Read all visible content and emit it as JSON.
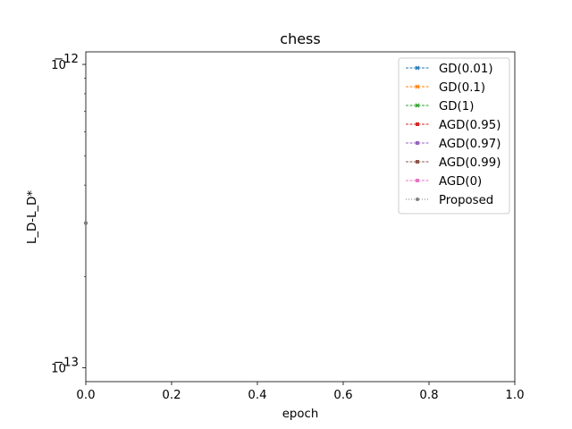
{
  "chart_data": {
    "type": "line",
    "title": "chess",
    "xlabel": "epoch",
    "ylabel": "L_D-L_D*",
    "xlim": [
      0.0,
      1.0
    ],
    "ylim": [
      9e-14,
      1.1e-12
    ],
    "yscale": "log",
    "grid": false,
    "legend_position": "top-right",
    "x_ticks": [
      {
        "value": 0.0,
        "label": "0.0"
      },
      {
        "value": 0.2,
        "label": "0.2"
      },
      {
        "value": 0.4,
        "label": "0.4"
      },
      {
        "value": 0.6,
        "label": "0.6"
      },
      {
        "value": 0.8,
        "label": "0.8"
      },
      {
        "value": 1.0,
        "label": "1.0"
      }
    ],
    "y_ticks": [
      {
        "value": 1e-13,
        "base": "10",
        "exp": "−13"
      },
      {
        "value": 1e-12,
        "base": "10",
        "exp": "−12"
      }
    ],
    "series": [
      {
        "name": "GD(0.01)",
        "color": "#1f77b4",
        "marker": "x",
        "linestyle": "dashed",
        "x": [],
        "y": []
      },
      {
        "name": "GD(0.1)",
        "color": "#ff7f0e",
        "marker": "x",
        "linestyle": "dashed",
        "x": [],
        "y": []
      },
      {
        "name": "GD(1)",
        "color": "#2ca02c",
        "marker": "x",
        "linestyle": "dashed",
        "x": [],
        "y": []
      },
      {
        "name": "AGD(0.95)",
        "color": "#d62728",
        "marker": "square",
        "linestyle": "dashed",
        "x": [],
        "y": []
      },
      {
        "name": "AGD(0.97)",
        "color": "#9467bd",
        "marker": "square",
        "linestyle": "dashed",
        "x": [],
        "y": []
      },
      {
        "name": "AGD(0.99)",
        "color": "#8c564b",
        "marker": "square",
        "linestyle": "dashed",
        "x": [],
        "y": []
      },
      {
        "name": "AGD(0)",
        "color": "#e377c2",
        "marker": "square",
        "linestyle": "dashed",
        "x": [],
        "y": []
      },
      {
        "name": "Proposed",
        "color": "#7f7f7f",
        "marker": "circle",
        "linestyle": "dotted",
        "x": [
          0.0
        ],
        "y": [
          3e-13
        ]
      }
    ]
  }
}
